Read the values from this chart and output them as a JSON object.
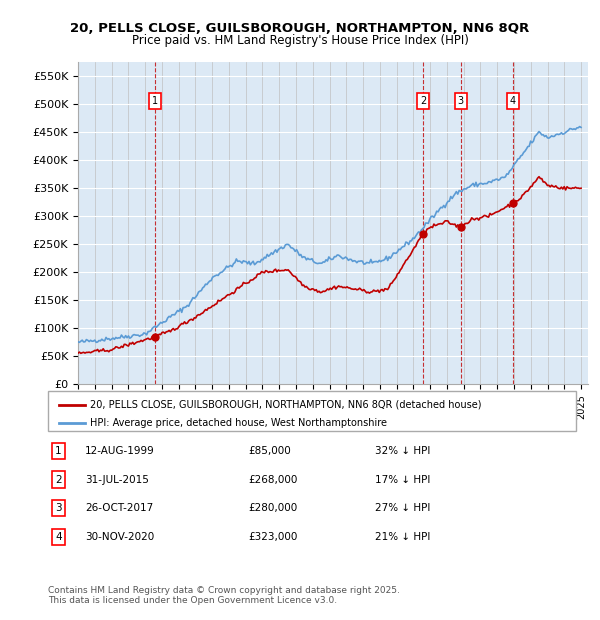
{
  "title_line1": "20, PELLS CLOSE, GUILSBOROUGH, NORTHAMPTON, NN6 8QR",
  "title_line2": "Price paid vs. HM Land Registry's House Price Index (HPI)",
  "ylabel": "",
  "background_color": "#dce9f5",
  "plot_background": "#dce9f5",
  "hpi_color": "#5b9bd5",
  "price_color": "#c00000",
  "ylim": [
    0,
    575000
  ],
  "yticks": [
    0,
    50000,
    100000,
    150000,
    200000,
    250000,
    300000,
    350000,
    400000,
    450000,
    500000,
    550000
  ],
  "ytick_labels": [
    "£0",
    "£50K",
    "£100K",
    "£150K",
    "£200K",
    "£250K",
    "£300K",
    "£350K",
    "£400K",
    "£450K",
    "£500K",
    "£550K"
  ],
  "sale_dates": [
    "1999-08-12",
    "2015-07-31",
    "2017-10-26",
    "2020-11-30"
  ],
  "sale_prices": [
    85000,
    268000,
    280000,
    323000
  ],
  "sale_labels": [
    "1",
    "2",
    "3",
    "4"
  ],
  "sale_info": [
    {
      "label": "1",
      "date": "12-AUG-1999",
      "price": "£85,000",
      "note": "32% ↓ HPI"
    },
    {
      "label": "2",
      "date": "31-JUL-2015",
      "price": "£268,000",
      "note": "17% ↓ HPI"
    },
    {
      "label": "3",
      "date": "26-OCT-2017",
      "price": "£280,000",
      "note": "27% ↓ HPI"
    },
    {
      "label": "4",
      "date": "30-NOV-2020",
      "price": "£323,000",
      "note": "21% ↓ HPI"
    }
  ],
  "legend_red_label": "20, PELLS CLOSE, GUILSBOROUGH, NORTHAMPTON, NN6 8QR (detached house)",
  "legend_blue_label": "HPI: Average price, detached house, West Northamptonshire",
  "footer": "Contains HM Land Registry data © Crown copyright and database right 2025.\nThis data is licensed under the Open Government Licence v3.0."
}
